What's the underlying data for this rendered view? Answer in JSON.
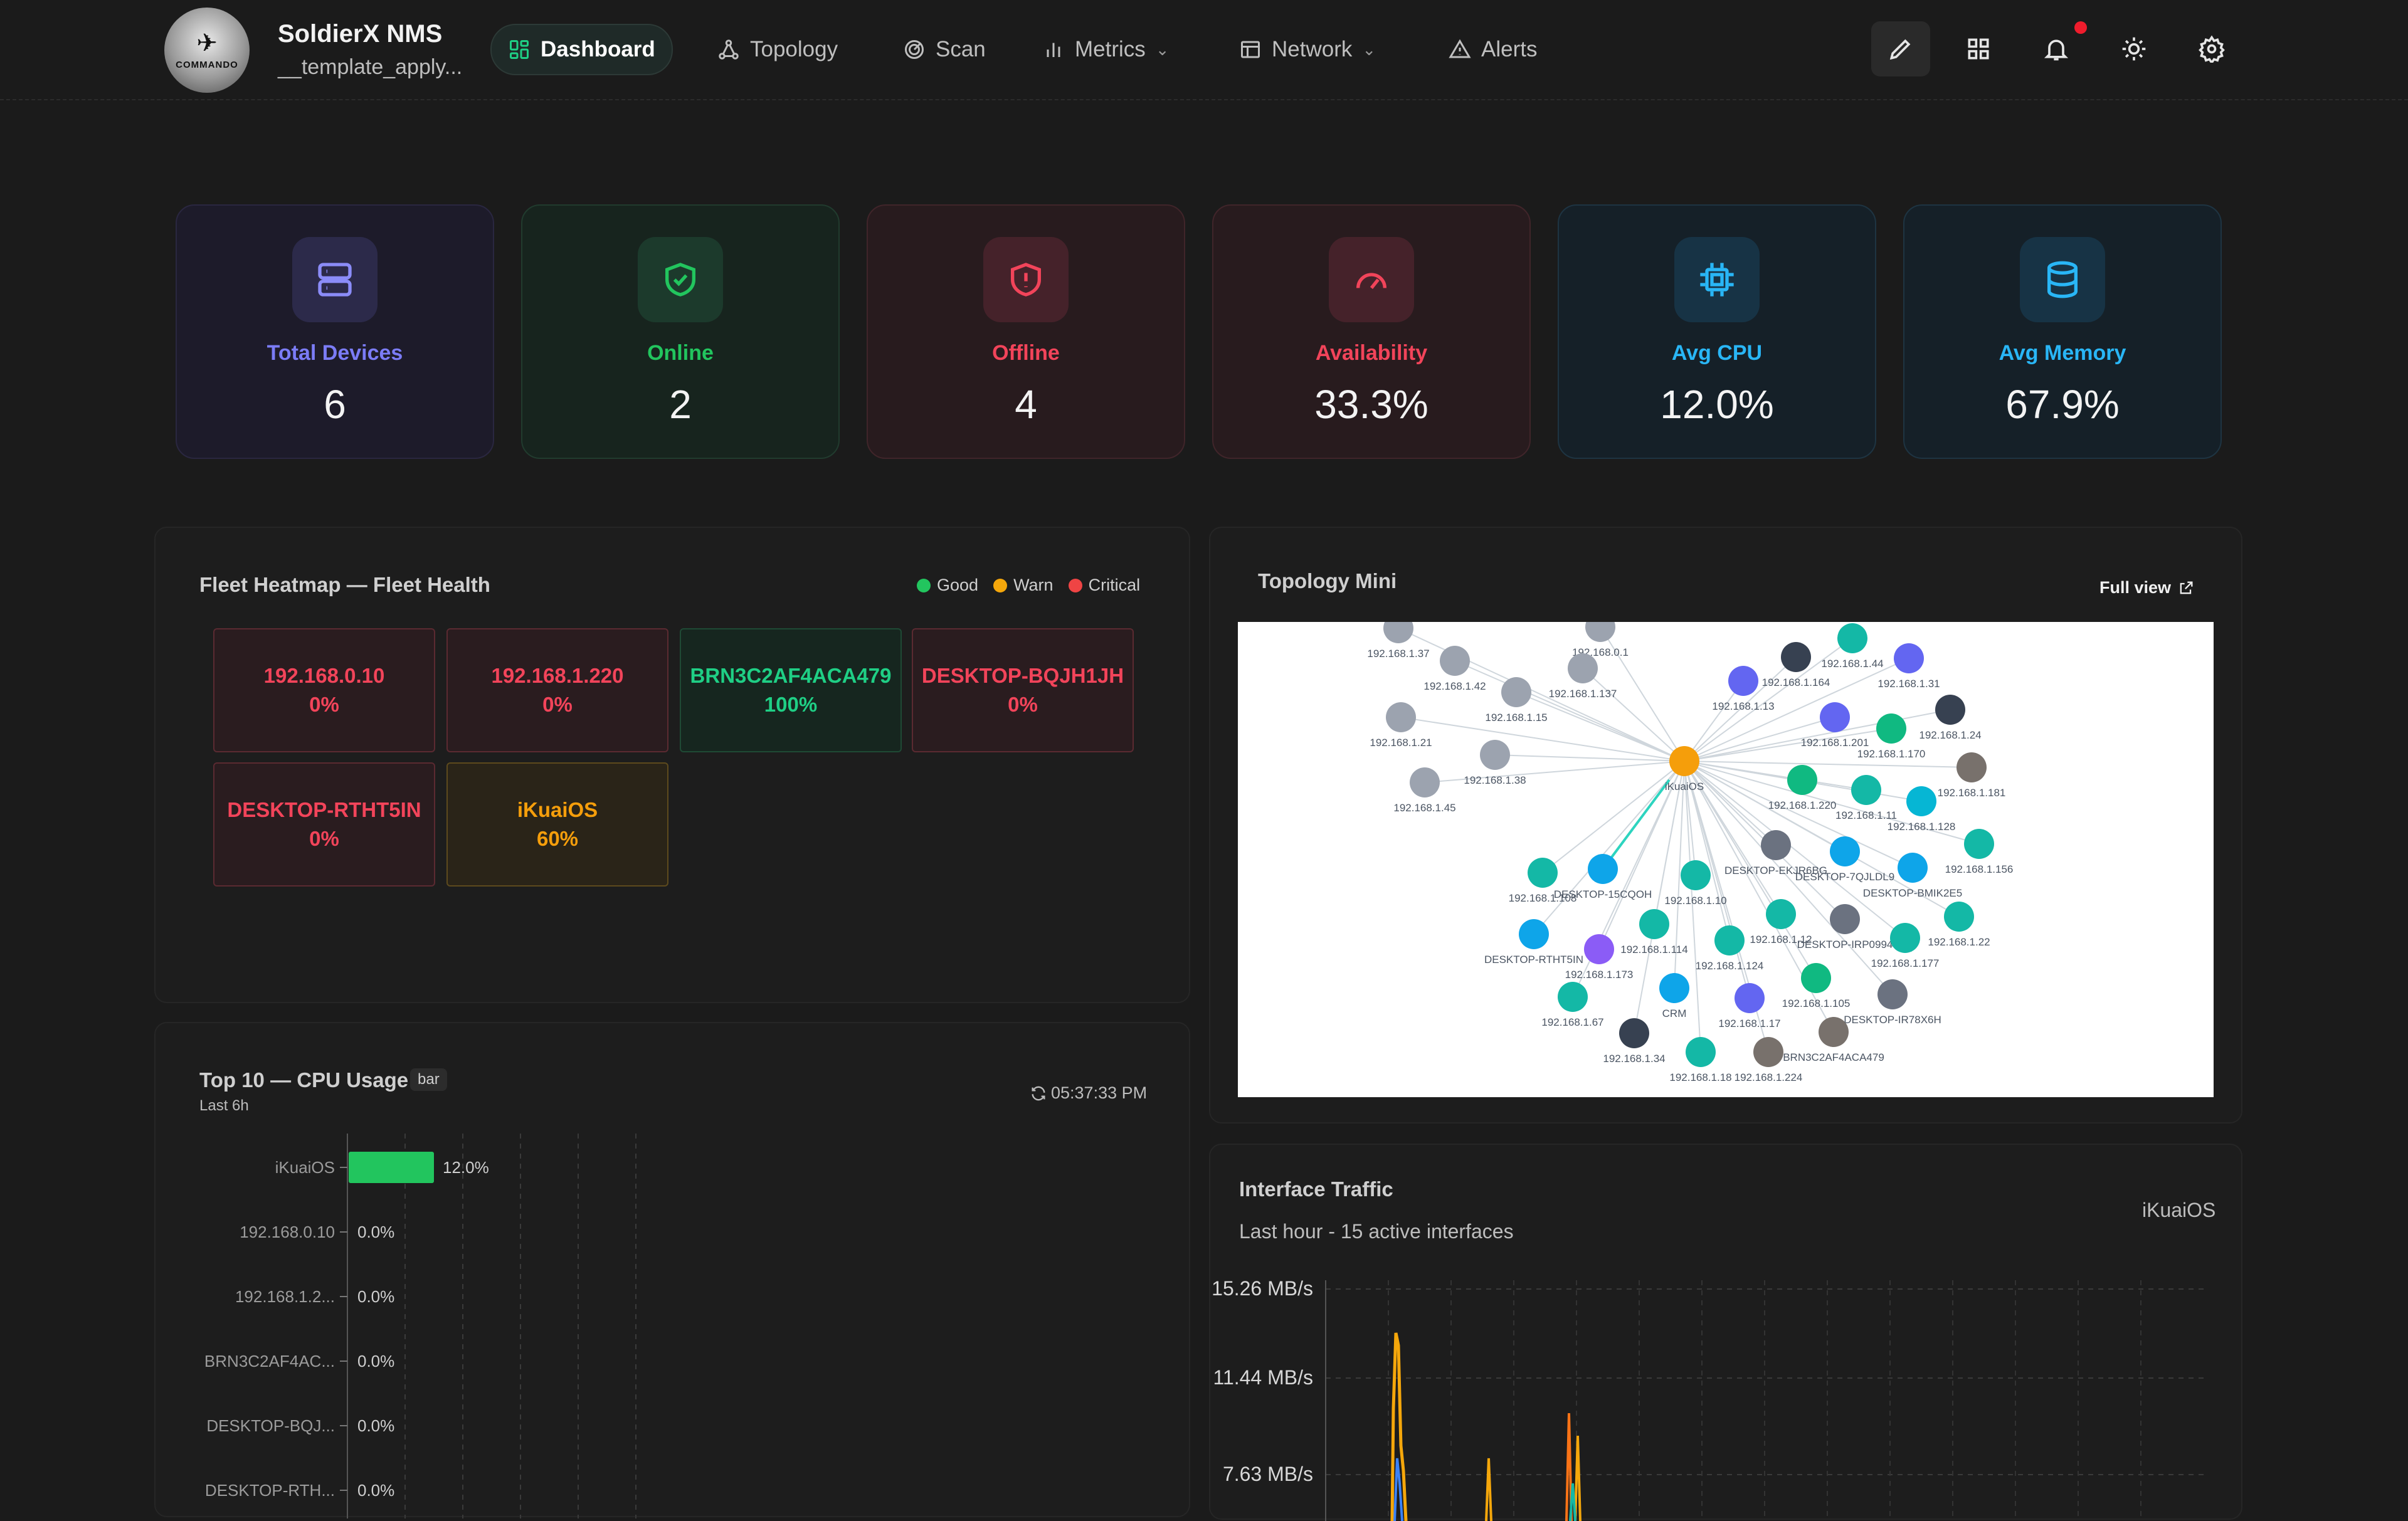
{
  "header": {
    "brand": "SoldierX NMS",
    "subtitle": "__template_apply...",
    "logo_text": "COMMANDO",
    "nav": [
      {
        "label": "Dashboard",
        "icon": "dashboard-icon",
        "active": true
      },
      {
        "label": "Topology",
        "icon": "topology-icon"
      },
      {
        "label": "Scan",
        "icon": "radar-icon"
      },
      {
        "label": "Metrics",
        "icon": "bar-chart-icon",
        "dropdown": true
      },
      {
        "label": "Network",
        "icon": "table-icon",
        "dropdown": true
      },
      {
        "label": "Alerts",
        "icon": "warning-icon"
      }
    ],
    "actions": [
      "edit-icon",
      "grid-icon",
      "bell-icon",
      "sun-icon",
      "gear-icon"
    ]
  },
  "stats": [
    {
      "label": "Total Devices",
      "value": "6",
      "color": "#7b7cf6",
      "icon": "server-icon"
    },
    {
      "label": "Online",
      "value": "2",
      "color": "#22c55e",
      "icon": "shield-check-icon"
    },
    {
      "label": "Offline",
      "value": "4",
      "color": "#f2445a",
      "icon": "shield-alert-icon"
    },
    {
      "label": "Availability",
      "value": "33.3%",
      "color": "#f2445a",
      "icon": "gauge-icon"
    },
    {
      "label": "Avg CPU",
      "value": "12.0%",
      "color": "#29b6f6",
      "icon": "cpu-icon"
    },
    {
      "label": "Avg Memory",
      "value": "67.9%",
      "color": "#29b6f6",
      "icon": "database-icon"
    }
  ],
  "heatmap": {
    "title": "Fleet Heatmap — Fleet Health",
    "legend": [
      "Good",
      "Warn",
      "Critical"
    ],
    "cells": [
      {
        "name": "192.168.0.10",
        "value": "0%",
        "status": "crit"
      },
      {
        "name": "192.168.1.220",
        "value": "0%",
        "status": "crit"
      },
      {
        "name": "BRN3C2AF4ACA479",
        "value": "100%",
        "status": "good"
      },
      {
        "name": "DESKTOP-BQJH1JH",
        "value": "0%",
        "status": "crit"
      },
      {
        "name": "DESKTOP-RTHT5IN",
        "value": "0%",
        "status": "crit"
      },
      {
        "name": "iKuaiOS",
        "value": "60%",
        "status": "warn"
      }
    ]
  },
  "cpu": {
    "title": "Top 10 — CPU Usage",
    "tag": "bar",
    "subtitle": "Last 6h",
    "time": "05:37:33 PM",
    "rows": [
      {
        "label": "iKuaiOS",
        "value": 12.0,
        "text": "12.0%"
      },
      {
        "label": "192.168.0.10",
        "value": 0.0,
        "text": "0.0%"
      },
      {
        "label": "192.168.1.2...",
        "value": 0.0,
        "text": "0.0%"
      },
      {
        "label": "BRN3C2AF4AC...",
        "value": 0.0,
        "text": "0.0%"
      },
      {
        "label": "DESKTOP-BQJ...",
        "value": 0.0,
        "text": "0.0%"
      },
      {
        "label": "DESKTOP-RTH...",
        "value": 0.0,
        "text": "0.0%"
      }
    ]
  },
  "topology": {
    "title": "Topology Mini",
    "full_view": "Full view",
    "center": "iKuaiOS",
    "nodes": [
      {
        "label": "192.168.1.37",
        "color": "#9ca3af"
      },
      {
        "label": "192.168.1.42",
        "color": "#9ca3af"
      },
      {
        "label": "192.168.0.1",
        "color": "#9ca3af"
      },
      {
        "label": "192.168.1.137",
        "color": "#9ca3af"
      },
      {
        "label": "192.168.1.15",
        "color": "#9ca3af"
      },
      {
        "label": "192.168.1.21",
        "color": "#9ca3af"
      },
      {
        "label": "192.168.1.38",
        "color": "#9ca3af"
      },
      {
        "label": "192.168.1.45",
        "color": "#9ca3af"
      },
      {
        "label": "192.168.1.164",
        "color": "#374151"
      },
      {
        "label": "192.168.1.44",
        "color": "#14b8a6"
      },
      {
        "label": "192.168.1.31",
        "color": "#6366f1"
      },
      {
        "label": "192.168.1.13",
        "color": "#6366f1"
      },
      {
        "label": "192.168.1.201",
        "color": "#6366f1"
      },
      {
        "label": "192.168.1.170",
        "color": "#10b981"
      },
      {
        "label": "192.168.1.24",
        "color": "#374151"
      },
      {
        "label": "192.168.1.181",
        "color": "#78716c"
      },
      {
        "label": "192.168.1.220",
        "color": "#10b981"
      },
      {
        "label": "192.168.1.11",
        "color": "#14b8a6"
      },
      {
        "label": "192.168.1.128",
        "color": "#06b6d4"
      },
      {
        "label": "192.168.1.156",
        "color": "#14b8a6"
      },
      {
        "label": "DESKTOP-EKJR6BG",
        "color": "#6b7280"
      },
      {
        "label": "DESKTOP-7QJLDL9",
        "color": "#0ea5e9"
      },
      {
        "label": "DESKTOP-BMIK2E5",
        "color": "#0ea5e9"
      },
      {
        "label": "192.168.1.108",
        "color": "#14b8a6"
      },
      {
        "label": "DESKTOP-15CQOH",
        "color": "#0ea5e9"
      },
      {
        "label": "192.168.1.10",
        "color": "#14b8a6"
      },
      {
        "label": "DESKTOP-RTHT5IN",
        "color": "#0ea5e9"
      },
      {
        "label": "192.168.1.114",
        "color": "#14b8a6"
      },
      {
        "label": "192.168.1.173",
        "color": "#8b5cf6"
      },
      {
        "label": "192.168.1.124",
        "color": "#14b8a6"
      },
      {
        "label": "192.168.1.12",
        "color": "#14b8a6"
      },
      {
        "label": "DESKTOP-IRP0994",
        "color": "#6b7280"
      },
      {
        "label": "192.168.1.177",
        "color": "#14b8a6"
      },
      {
        "label": "192.168.1.22",
        "color": "#14b8a6"
      },
      {
        "label": "192.168.1.67",
        "color": "#14b8a6"
      },
      {
        "label": "CRM",
        "color": "#0ea5e9"
      },
      {
        "label": "192.168.1.17",
        "color": "#6366f1"
      },
      {
        "label": "192.168.1.105",
        "color": "#10b981"
      },
      {
        "label": "DESKTOP-IR78X6H",
        "color": "#6b7280"
      },
      {
        "label": "192.168.1.34",
        "color": "#374151"
      },
      {
        "label": "192.168.1.18",
        "color": "#14b8a6"
      },
      {
        "label": "192.168.1.224",
        "color": "#78716c"
      },
      {
        "label": "BRN3C2AF4ACA479",
        "color": "#78716c"
      }
    ]
  },
  "traffic": {
    "title": "Interface Traffic",
    "subtitle": "Last hour - 15 active interfaces",
    "device": "iKuaiOS",
    "yticks": [
      "15.26 MB/s",
      "11.44 MB/s",
      "7.63 MB/s"
    ]
  }
}
